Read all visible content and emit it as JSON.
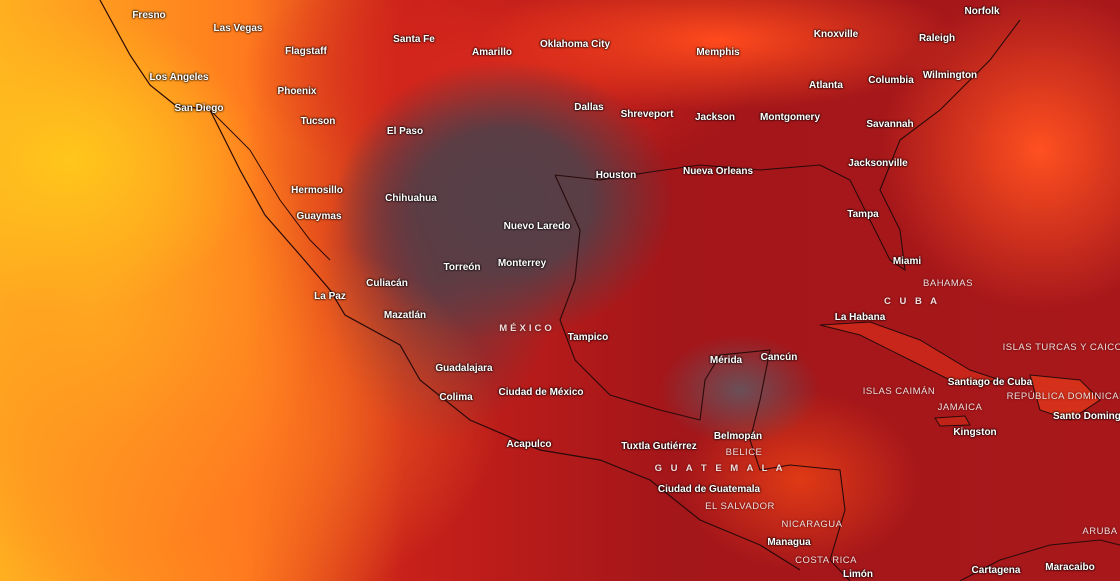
{
  "map": {
    "layer": "temperature heat map",
    "colors": {
      "hot_ocean": "#ffb020",
      "land_dark": "#554048",
      "sea_red": "#a3161a"
    }
  },
  "cities": [
    "Fresno",
    "Las Vegas",
    "Flagstaff",
    "Santa Fe",
    "Amarillo",
    "Oklahoma City",
    "Memphis",
    "Knoxville",
    "Raleigh",
    "Norfolk",
    "Los Angeles",
    "Phoenix",
    "Atlanta",
    "Columbia",
    "Wilmington",
    "San Diego",
    "Tucson",
    "El Paso",
    "Dallas",
    "Shreveport",
    "Jackson",
    "Montgomery",
    "Savannah",
    "Jacksonville",
    "Houston",
    "Nueva Orleans",
    "Hermosillo",
    "Chihuahua",
    "Guaymas",
    "Nuevo Laredo",
    "Tampa",
    "Miami",
    "Torreón",
    "Monterrey",
    "Culiacán",
    "La Paz",
    "Mazatlán",
    "Tampico",
    "La Habana",
    "Mérida",
    "Cancún",
    "Guadalajara",
    "Ciudad de México",
    "Colima",
    "Santiago de Cuba",
    "Kingston",
    "Santo Domingo",
    "Belmopán",
    "Acapulco",
    "Tuxtla Gutiérrez",
    "Ciudad de Guatemala",
    "Managua",
    "Cartagena",
    "Maracaibo",
    "Limón"
  ],
  "countries": [
    "MÉXICO",
    "C U B A",
    "BAHAMAS",
    "ISLAS TURCAS Y CAICOS",
    "ISLAS CAIMÁN",
    "JAMAICA",
    "REPÚBLICA DOMINICANA",
    "BELICE",
    "G U A T E M A L A",
    "EL SALVADOR",
    "NICARAGUA",
    "COSTA RICA",
    "ARUBA"
  ]
}
